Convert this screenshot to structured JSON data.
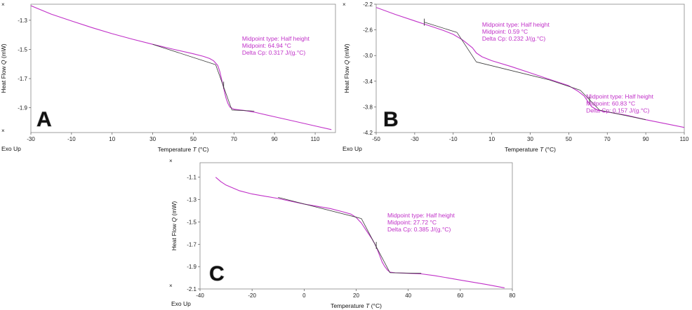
{
  "colors": {
    "curve": "#c030c8",
    "fit": "#3a3a3a",
    "annotation": "#c030c8",
    "frame": "#888888"
  },
  "chart_data": [
    {
      "type": "line",
      "panel_label": "A",
      "xlabel": "Temperature",
      "xlabel_symbol": "T",
      "xlabel_unit": "(°C)",
      "ylabel": "Heat Flow",
      "ylabel_symbol": "Q",
      "ylabel_unit": "(mW)",
      "exo_label": "Exo Up",
      "xlim": [
        -30,
        120
      ],
      "ylim": [
        -2.07,
        -1.19
      ],
      "x_ticks": [
        -30,
        -10,
        10,
        30,
        50,
        70,
        90,
        110
      ],
      "y_ticks": [
        -1.3,
        -1.5,
        -1.7,
        -1.9
      ],
      "series": [
        {
          "name": "heat flow",
          "x": [
            -30,
            -20,
            -10,
            0,
            10,
            20,
            30,
            40,
            50,
            55,
            58,
            60,
            62,
            63,
            64,
            65,
            66,
            67,
            68,
            70,
            72,
            75,
            80,
            90,
            100,
            110,
            118
          ],
          "y": [
            -1.2,
            -1.258,
            -1.305,
            -1.35,
            -1.392,
            -1.43,
            -1.465,
            -1.498,
            -1.53,
            -1.548,
            -1.562,
            -1.578,
            -1.61,
            -1.65,
            -1.71,
            -1.77,
            -1.83,
            -1.87,
            -1.895,
            -1.91,
            -1.913,
            -1.918,
            -1.93,
            -1.962,
            -1.993,
            -2.025,
            -2.05
          ]
        },
        {
          "name": "onset tangent",
          "x": [
            30,
            61
          ],
          "y": [
            -1.465,
            -1.605
          ]
        },
        {
          "name": "steep tangent",
          "x": [
            61,
            69
          ],
          "y": [
            -1.605,
            -1.915
          ]
        },
        {
          "name": "offset tangent",
          "x": [
            69,
            80
          ],
          "y": [
            -1.915,
            -1.923
          ]
        }
      ],
      "midpoint_marker": {
        "x": 64.94,
        "y": -1.745
      },
      "annotations": [
        {
          "x": 74,
          "y": -1.44,
          "lines": [
            "Midpoint type: Half height",
            "Midpoint: 64.94 °C",
            "Delta Cp: 0.317 J/(g.°C)"
          ]
        }
      ]
    },
    {
      "type": "line",
      "panel_label": "B",
      "xlabel": "Temperature",
      "xlabel_symbol": "T",
      "xlabel_unit": "(°C)",
      "ylabel": "Heat Flow",
      "ylabel_symbol": "Q",
      "ylabel_unit": "(mW)",
      "exo_label": "Exo Up",
      "xlim": [
        -50,
        110
      ],
      "ylim": [
        -4.2,
        -2.2
      ],
      "x_ticks": [
        -50,
        -30,
        -10,
        10,
        30,
        50,
        70,
        90,
        110
      ],
      "y_ticks": [
        -2.2,
        -2.6,
        -3.0,
        -3.4,
        -3.8,
        -4.2
      ],
      "series": [
        {
          "name": "heat flow",
          "x": [
            -50,
            -40,
            -30,
            -25,
            -20,
            -15,
            -10,
            -5,
            0,
            2,
            5,
            10,
            20,
            30,
            40,
            50,
            55,
            58,
            60,
            62,
            65,
            68,
            70,
            80,
            90,
            100,
            110
          ],
          "y": [
            -2.25,
            -2.36,
            -2.46,
            -2.51,
            -2.56,
            -2.61,
            -2.67,
            -2.76,
            -2.88,
            -2.96,
            -3.02,
            -3.08,
            -3.17,
            -3.27,
            -3.37,
            -3.47,
            -3.56,
            -3.63,
            -3.72,
            -3.8,
            -3.85,
            -3.87,
            -3.88,
            -3.93,
            -4.0,
            -4.06,
            -4.12
          ]
        },
        {
          "name": "onset tangent 1",
          "x": [
            -25,
            -8
          ],
          "y": [
            -2.48,
            -2.64
          ]
        },
        {
          "name": "steep tangent 1",
          "x": [
            -8,
            2
          ],
          "y": [
            -2.64,
            -3.1
          ]
        },
        {
          "name": "offset tangent 1",
          "x": [
            2,
            40
          ],
          "y": [
            -3.1,
            -3.38
          ]
        },
        {
          "name": "onset tangent 2",
          "x": [
            40,
            56
          ],
          "y": [
            -3.38,
            -3.54
          ]
        },
        {
          "name": "steep tangent 2",
          "x": [
            56,
            66
          ],
          "y": [
            -3.54,
            -3.85
          ]
        },
        {
          "name": "offset tangent 2",
          "x": [
            66,
            90
          ],
          "y": [
            -3.85,
            -4.0
          ]
        }
      ],
      "tick_markers": [
        {
          "x": -25,
          "y": -2.48
        },
        {
          "x": 60.83,
          "y": -3.7
        }
      ],
      "annotations": [
        {
          "x": 5,
          "y": -2.55,
          "lines": [
            "Midpoint type: Half height",
            "Midpoint: 0.59 °C",
            "Delta Cp: 0.232 J/(g.°C)"
          ]
        },
        {
          "x": 59,
          "y": -3.67,
          "lines": [
            "Midpoint type: Half height",
            "Midpoint: 60.83 °C",
            "Delta Cp: 0.157 J/(g.°C)"
          ]
        }
      ]
    },
    {
      "type": "line",
      "panel_label": "C",
      "xlabel": "Temperature",
      "xlabel_symbol": "T",
      "xlabel_unit": "(°C)",
      "ylabel": "Heat Flow",
      "ylabel_symbol": "Q",
      "ylabel_unit": "(mW)",
      "exo_label": "Exo Up",
      "xlim": [
        -40,
        80
      ],
      "ylim": [
        -2.1,
        -0.97
      ],
      "x_ticks": [
        -40,
        -20,
        0,
        20,
        40,
        60,
        80
      ],
      "y_ticks": [
        -1.1,
        -1.3,
        -1.5,
        -1.7,
        -1.9,
        -2.1
      ],
      "series": [
        {
          "name": "heat flow",
          "x": [
            -34,
            -32,
            -30,
            -25,
            -20,
            -10,
            0,
            10,
            15,
            18,
            20,
            22,
            24,
            26,
            27,
            28,
            29,
            30,
            31,
            32,
            33,
            35,
            40,
            45,
            50,
            60,
            70,
            77
          ],
          "y": [
            -1.1,
            -1.14,
            -1.17,
            -1.22,
            -1.25,
            -1.29,
            -1.34,
            -1.38,
            -1.41,
            -1.43,
            -1.46,
            -1.51,
            -1.58,
            -1.65,
            -1.69,
            -1.74,
            -1.8,
            -1.86,
            -1.9,
            -1.93,
            -1.95,
            -1.955,
            -1.96,
            -1.965,
            -1.98,
            -2.02,
            -2.06,
            -2.09
          ]
        },
        {
          "name": "onset tangent",
          "x": [
            -10,
            22
          ],
          "y": [
            -1.28,
            -1.47
          ]
        },
        {
          "name": "steep tangent",
          "x": [
            22,
            33
          ],
          "y": [
            -1.47,
            -1.955
          ]
        },
        {
          "name": "offset tangent",
          "x": [
            33,
            45
          ],
          "y": [
            -1.955,
            -1.96
          ]
        }
      ],
      "midpoint_marker": {
        "x": 27.72,
        "y": -1.71
      },
      "annotations": [
        {
          "x": 32,
          "y": -1.46,
          "lines": [
            "Midpoint type: Half height",
            "Midpoint: 27.72 °C",
            "Delta Cp: 0.385 J/(g.°C)"
          ]
        }
      ]
    }
  ]
}
